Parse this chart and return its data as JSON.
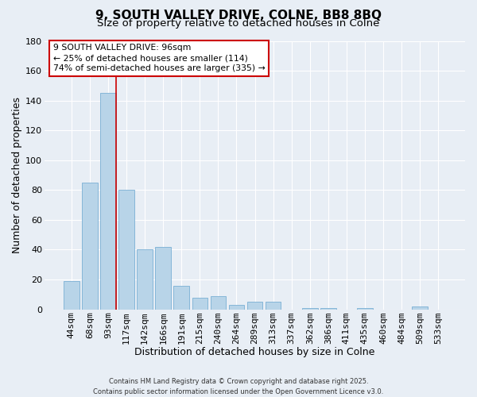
{
  "title": "9, SOUTH VALLEY DRIVE, COLNE, BB8 8BQ",
  "subtitle": "Size of property relative to detached houses in Colne",
  "xlabel": "Distribution of detached houses by size in Colne",
  "ylabel": "Number of detached properties",
  "bar_labels": [
    "44sqm",
    "68sqm",
    "93sqm",
    "117sqm",
    "142sqm",
    "166sqm",
    "191sqm",
    "215sqm",
    "240sqm",
    "264sqm",
    "289sqm",
    "313sqm",
    "337sqm",
    "362sqm",
    "386sqm",
    "411sqm",
    "435sqm",
    "460sqm",
    "484sqm",
    "509sqm",
    "533sqm"
  ],
  "bar_values": [
    19,
    85,
    145,
    80,
    40,
    42,
    16,
    8,
    9,
    3,
    5,
    5,
    0,
    1,
    1,
    0,
    1,
    0,
    0,
    2,
    0
  ],
  "bar_color": "#b8d4e8",
  "bar_edge_color": "#7aafd4",
  "vline_x_index": 2,
  "vline_color": "#cc0000",
  "ylim": [
    0,
    180
  ],
  "yticks": [
    0,
    20,
    40,
    60,
    80,
    100,
    120,
    140,
    160,
    180
  ],
  "annotation_text": "9 SOUTH VALLEY DRIVE: 96sqm\n← 25% of detached houses are smaller (114)\n74% of semi-detached houses are larger (335) →",
  "annotation_box_color": "#ffffff",
  "annotation_box_edge": "#cc0000",
  "footer1": "Contains HM Land Registry data © Crown copyright and database right 2025.",
  "footer2": "Contains public sector information licensed under the Open Government Licence v3.0.",
  "background_color": "#e8eef5",
  "grid_color": "#ffffff",
  "title_fontsize": 11,
  "subtitle_fontsize": 9.5,
  "tick_fontsize": 8,
  "ylabel_fontsize": 9,
  "xlabel_fontsize": 9
}
